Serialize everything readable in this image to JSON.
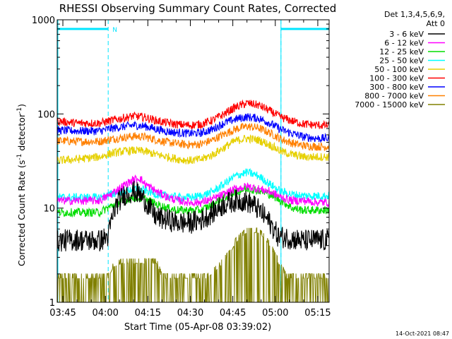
{
  "chart_data": {
    "type": "line",
    "title": "RHESSI Observing Summary Count Rates, Corrected",
    "xlabel": "Start Time (05-Apr-08 03:39:02)",
    "ylabel": "Corrected Count Rate (s⁻¹ detector⁻¹)",
    "ylabel_parts": {
      "pre": "Corrected Count Rate (s",
      "sup1": "-1",
      "mid": " detector",
      "sup2": "-1",
      "post": ")"
    },
    "yscale": "log",
    "ylim": [
      1,
      1000
    ],
    "yticks": [
      "1",
      "10",
      "100",
      "1000"
    ],
    "xlim_minutes": [
      223,
      319
    ],
    "xticks": [
      "03:45",
      "04:00",
      "04:15",
      "04:30",
      "04:45",
      "05:00",
      "05:15"
    ],
    "legend_header": [
      "Det 1,3,4,5,6,9,",
      "Att 0"
    ],
    "footer_date": "14-Oct-2021 08:47",
    "night_label": "N",
    "flag_color": "#00e5ff",
    "flag_segments": [
      [
        223,
        241
      ],
      [
        302,
        319
      ]
    ],
    "dashed_lines_minutes": [
      241,
      302,
      319
    ],
    "series": [
      {
        "name": "3 - 6 keV",
        "color": "#000000",
        "x": [
          223,
          230,
          238,
          241,
          244,
          247,
          250,
          252,
          254,
          256,
          258,
          262,
          266,
          270,
          274,
          278,
          282,
          286,
          289,
          292,
          295,
          298,
          301,
          305,
          310,
          315,
          319
        ],
        "y": [
          4.5,
          4.6,
          4.5,
          5,
          11,
          14,
          15,
          14,
          12,
          9.5,
          8,
          7.5,
          7,
          7,
          7.5,
          9,
          11,
          12,
          12,
          11,
          9,
          7,
          5,
          4.8,
          4.5,
          4.6,
          4.5
        ]
      },
      {
        "name": "6 - 12 keV",
        "color": "#ff00ff",
        "x": [
          223,
          230,
          238,
          242,
          246,
          250,
          252,
          254,
          258,
          262,
          266,
          270,
          274,
          278,
          282,
          286,
          290,
          294,
          298,
          302,
          306,
          310,
          315,
          319
        ],
        "y": [
          12,
          12,
          12,
          14,
          17,
          20,
          21,
          18,
          15,
          13,
          12,
          11.5,
          11.5,
          12.5,
          14,
          16,
          17,
          16,
          15,
          13,
          12,
          12,
          11.5,
          11.5
        ]
      },
      {
        "name": "12 - 25 keV",
        "color": "#00dd00",
        "x": [
          223,
          230,
          238,
          242,
          246,
          250,
          254,
          258,
          262,
          266,
          270,
          274,
          278,
          282,
          286,
          290,
          294,
          298,
          302,
          306,
          310,
          315,
          319
        ],
        "y": [
          9,
          9,
          9,
          10.5,
          12,
          13,
          12.5,
          11,
          10,
          9.5,
          9.5,
          9.5,
          11,
          13,
          15,
          16,
          15.5,
          14,
          12,
          10,
          9.5,
          9.5,
          9.5
        ]
      },
      {
        "name": "25 - 50 keV",
        "color": "#00ffff",
        "x": [
          223,
          230,
          238,
          242,
          246,
          250,
          254,
          258,
          262,
          266,
          270,
          274,
          278,
          282,
          286,
          290,
          294,
          298,
          302,
          306,
          310,
          315,
          319
        ],
        "y": [
          13,
          13,
          13,
          14,
          15,
          16,
          15.5,
          14,
          13.5,
          13,
          13,
          13.5,
          15,
          18,
          22,
          24,
          22,
          18,
          15,
          14,
          13.5,
          13.5,
          13.5
        ]
      },
      {
        "name": "50 - 100 keV",
        "color": "#e6d000",
        "x": [
          223,
          230,
          238,
          242,
          246,
          250,
          254,
          258,
          262,
          266,
          270,
          274,
          278,
          282,
          286,
          290,
          294,
          298,
          302,
          306,
          310,
          315,
          319
        ],
        "y": [
          32,
          33,
          35,
          38,
          40,
          41,
          40,
          37,
          35,
          33,
          32,
          33,
          37,
          44,
          52,
          55,
          53,
          47,
          40,
          37,
          35,
          35,
          35
        ]
      },
      {
        "name": "100 - 300 keV",
        "color": "#ff0000",
        "x": [
          223,
          230,
          238,
          242,
          246,
          250,
          254,
          258,
          262,
          266,
          270,
          274,
          278,
          282,
          286,
          290,
          294,
          298,
          302,
          306,
          310,
          315,
          319
        ],
        "y": [
          84,
          80,
          80,
          85,
          90,
          95,
          92,
          85,
          80,
          77,
          76,
          78,
          86,
          100,
          118,
          130,
          124,
          108,
          92,
          84,
          78,
          76,
          75
        ]
      },
      {
        "name": "300 - 800 keV",
        "color": "#0000ff",
        "x": [
          223,
          230,
          238,
          242,
          246,
          250,
          254,
          258,
          262,
          266,
          270,
          274,
          278,
          282,
          286,
          290,
          294,
          298,
          302,
          306,
          310,
          315,
          319
        ],
        "y": [
          67,
          66,
          66,
          70,
          73,
          76,
          74,
          69,
          65,
          63,
          62,
          63,
          69,
          80,
          88,
          93,
          90,
          80,
          68,
          62,
          57,
          55,
          55
        ]
      },
      {
        "name": "800 - 7000 keV",
        "color": "#ff8000",
        "x": [
          223,
          230,
          238,
          242,
          246,
          250,
          254,
          258,
          262,
          266,
          270,
          274,
          278,
          282,
          286,
          290,
          294,
          298,
          302,
          306,
          310,
          315,
          319
        ],
        "y": [
          52,
          51,
          51,
          54,
          56,
          58,
          57,
          53,
          50,
          48,
          47,
          48,
          53,
          61,
          69,
          74,
          71,
          63,
          54,
          49,
          46,
          45,
          45
        ]
      },
      {
        "name": "7000 - 15000 keV",
        "color": "#808000",
        "x": [
          223,
          226,
          230,
          234,
          238,
          241,
          243,
          246,
          250,
          254,
          258,
          260,
          264,
          268,
          272,
          276,
          280,
          284,
          286,
          290,
          294,
          296,
          298,
          300,
          302,
          304,
          308,
          312,
          316,
          319
        ],
        "y": [
          1.8,
          1.8,
          1.8,
          1.8,
          1.8,
          1.8,
          2.4,
          2.6,
          2.6,
          2.6,
          2.6,
          1.8,
          1.8,
          1.8,
          1.8,
          1.8,
          2.3,
          3.2,
          4.3,
          5.5,
          5.5,
          4.8,
          4.0,
          3.0,
          2.3,
          1.8,
          1.8,
          1.8,
          1.8,
          1.8
        ]
      }
    ]
  }
}
